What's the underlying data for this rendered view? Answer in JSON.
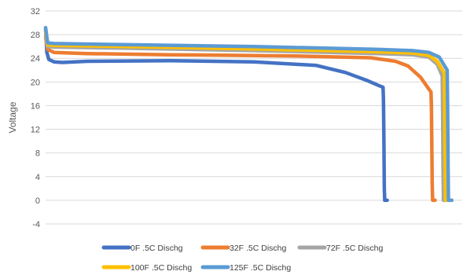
{
  "chart_data": {
    "type": "line",
    "title": "",
    "xlabel": "",
    "ylabel": "Voltage",
    "ylim": [
      -4,
      32
    ],
    "yticks": [
      -4,
      0,
      4,
      8,
      12,
      16,
      20,
      24,
      28,
      32
    ],
    "x_tick_labels_shown": false,
    "xlim": [
      0,
      100
    ],
    "grid": "horizontal",
    "legend_position": "bottom",
    "series": [
      {
        "name": "0F .5C Dischg",
        "color": "#4472C4",
        "points": [
          [
            0,
            29
          ],
          [
            0.3,
            25
          ],
          [
            0.8,
            23.8
          ],
          [
            2,
            23.4
          ],
          [
            4,
            23.3
          ],
          [
            10,
            23.5
          ],
          [
            30,
            23.6
          ],
          [
            50,
            23.4
          ],
          [
            65,
            22.8
          ],
          [
            72,
            21.6
          ],
          [
            77,
            20.3
          ],
          [
            80,
            19.4
          ],
          [
            81,
            19.1
          ],
          [
            81.1,
            17
          ],
          [
            81.2,
            10
          ],
          [
            81.3,
            2
          ],
          [
            81.4,
            0
          ],
          [
            82,
            0
          ]
        ]
      },
      {
        "name": "32F .5C Dischg",
        "color": "#ED7D31",
        "points": [
          [
            0,
            27.5
          ],
          [
            0.5,
            25.5
          ],
          [
            2,
            25
          ],
          [
            10,
            24.8
          ],
          [
            30,
            24.6
          ],
          [
            60,
            24.4
          ],
          [
            78,
            24.1
          ],
          [
            84,
            23.5
          ],
          [
            87,
            22.7
          ],
          [
            90,
            20.8
          ],
          [
            92,
            18.8
          ],
          [
            92.5,
            18.3
          ],
          [
            92.6,
            16
          ],
          [
            92.7,
            10
          ],
          [
            92.8,
            3
          ],
          [
            92.9,
            0
          ],
          [
            93.5,
            0
          ]
        ]
      },
      {
        "name": "72F .5C Dischg",
        "color": "#A5A5A5",
        "points": [
          [
            0,
            28
          ],
          [
            0.5,
            26
          ],
          [
            2,
            25.9
          ],
          [
            20,
            25.7
          ],
          [
            50,
            25.3
          ],
          [
            80,
            24.8
          ],
          [
            88,
            24.6
          ],
          [
            92,
            24.2
          ],
          [
            94,
            23
          ],
          [
            95.2,
            21
          ],
          [
            95.3,
            15
          ],
          [
            95.4,
            6
          ],
          [
            95.5,
            0
          ],
          [
            96.2,
            0
          ]
        ]
      },
      {
        "name": "100F .5C Dischg",
        "color": "#FFC000",
        "points": [
          [
            0,
            28.5
          ],
          [
            0.5,
            26.3
          ],
          [
            2,
            26.2
          ],
          [
            20,
            26
          ],
          [
            50,
            25.6
          ],
          [
            80,
            25.1
          ],
          [
            88,
            24.9
          ],
          [
            92,
            24.5
          ],
          [
            94,
            23.5
          ],
          [
            95.7,
            21.5
          ],
          [
            95.8,
            15
          ],
          [
            95.9,
            6
          ],
          [
            96,
            0
          ],
          [
            96.7,
            0
          ]
        ]
      },
      {
        "name": "125F .5C Dischg",
        "color": "#5B9BD5",
        "points": [
          [
            0,
            29.2
          ],
          [
            0.5,
            26.6
          ],
          [
            2,
            26.5
          ],
          [
            20,
            26.3
          ],
          [
            50,
            26
          ],
          [
            80,
            25.5
          ],
          [
            88,
            25.3
          ],
          [
            92,
            25
          ],
          [
            94.5,
            24.2
          ],
          [
            96.4,
            22
          ],
          [
            96.5,
            15
          ],
          [
            96.6,
            6
          ],
          [
            96.7,
            0
          ],
          [
            97.5,
            0
          ]
        ]
      }
    ]
  }
}
